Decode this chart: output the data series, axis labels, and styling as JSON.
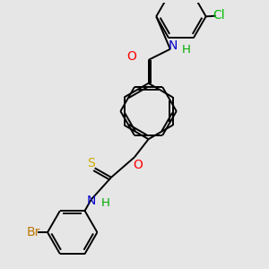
{
  "bg_color": "#e6e6e6",
  "bond_color": "#000000",
  "bond_width": 1.4,
  "atom_colors": {
    "O": "#ff0000",
    "N": "#0000cc",
    "S": "#ccaa00",
    "Cl": "#00bb00",
    "Br": "#bb7700",
    "H": "#00aa00"
  },
  "font_size": 8.5
}
